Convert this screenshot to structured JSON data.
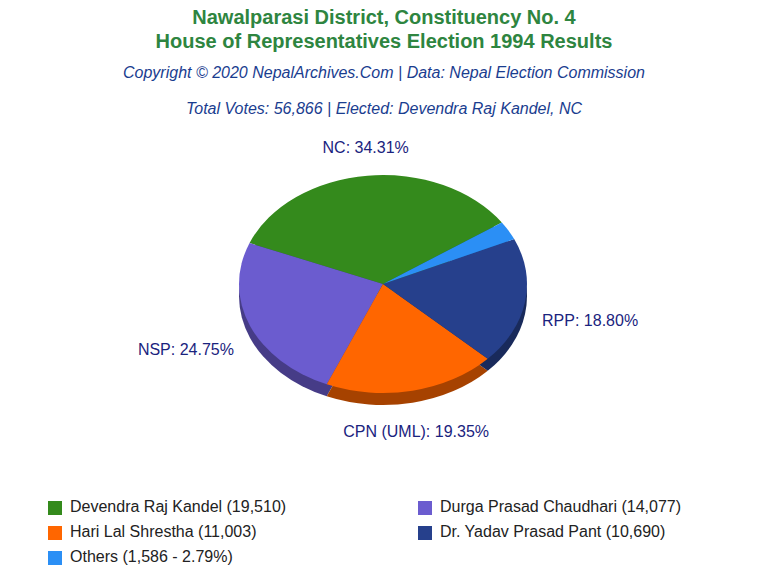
{
  "chart_data": {
    "type": "pie",
    "title": "Nawalparasi District, Constituency No. 4",
    "subtitle": "House of Representatives Election 1994 Results",
    "annotations": [
      "Copyright © 2020 NepalArchives.Com | Data: Nepal Election Commission",
      "Total Votes: 56,866 | Elected: Devendra Raj Kandel, NC"
    ],
    "categories": [
      "Devendra Raj Kandel",
      "Durga Prasad Chaudhari",
      "Hari Lal Shrestha",
      "Dr. Yadav Prasad Pant",
      "Others"
    ],
    "legend_labels": [
      "Devendra Raj Kandel (19,510)",
      "Durga Prasad Chaudhari (14,077)",
      "Hari Lal Shrestha (11,003)",
      "Dr. Yadav Prasad Pant (10,690)",
      "Others (1,586 - 2.79%)"
    ],
    "values": [
      34.31,
      24.75,
      19.35,
      18.8,
      2.79
    ],
    "value_labels": [
      "NC: 34.31%",
      "NSP: 24.75%",
      "CPN (UML): 19.35%",
      "RPP: 18.80%",
      null
    ],
    "colors": [
      "#348a1c",
      "#6b5ccf",
      "#ff6600",
      "#26408c",
      "#2b8ff5"
    ],
    "data_labels": true,
    "legend": "bottom"
  }
}
